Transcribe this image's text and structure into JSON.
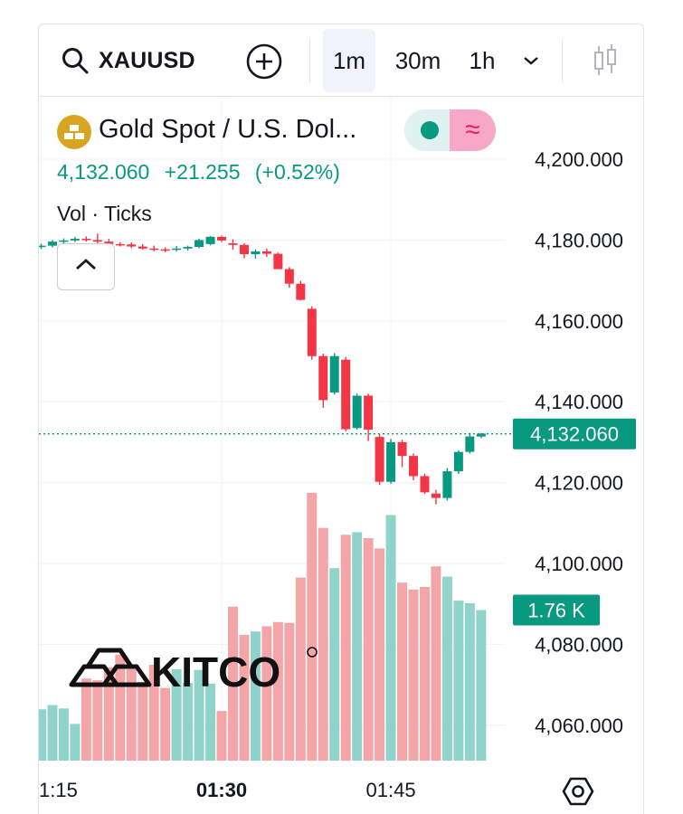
{
  "toolbar": {
    "symbol": "XAUUSD",
    "intervals": [
      "1m",
      "30m",
      "1h"
    ],
    "active_interval": "1m"
  },
  "legend": {
    "title": "Gold Spot / U.S. Dol...",
    "last": "4,132.060",
    "change": "+21.255",
    "change_pct": "(+0.52%)",
    "volume_label": "Vol · Ticks"
  },
  "colors": {
    "up": "#089981",
    "down": "#f23645",
    "up_volume": "#8fd3cb",
    "down_volume": "#f4a5a8",
    "price_badge": "#089981",
    "gold": "#d9a520"
  },
  "price_badge": "4,132.060",
  "volume_badge": "1.76 K",
  "logo": "KITCO",
  "chart_data": {
    "type": "candlestick",
    "y_ticks": [
      "4,200.000",
      "4,180.000",
      "4,160.000",
      "4,140.000",
      "4,120.000",
      "4,100.000",
      "4,080.000",
      "4,060.000"
    ],
    "y_tick_values": [
      4200,
      4180,
      4160,
      4140,
      4120,
      4100,
      4080,
      4060
    ],
    "ylim": [
      4053,
      4207
    ],
    "x_ticks": [
      "1:15",
      "01:30",
      "01:45"
    ],
    "x_tick_index": [
      0,
      16,
      31
    ],
    "last_price": 4132.06,
    "candles": [
      [
        4178.4,
        4179.1,
        4177.8,
        4178.6
      ],
      [
        4178.6,
        4180.0,
        4178.2,
        4179.6
      ],
      [
        4179.6,
        4180.4,
        4179.0,
        4179.9
      ],
      [
        4179.9,
        4180.8,
        4179.5,
        4180.3
      ],
      [
        4180.3,
        4180.9,
        4179.6,
        4180.0
      ],
      [
        4180.0,
        4181.6,
        4179.2,
        4179.6
      ],
      [
        4179.6,
        4180.3,
        4178.7,
        4179.0
      ],
      [
        4179.0,
        4179.5,
        4178.4,
        4178.9
      ],
      [
        4178.9,
        4179.4,
        4178.0,
        4178.4
      ],
      [
        4178.4,
        4179.0,
        4177.6,
        4177.9
      ],
      [
        4177.9,
        4178.6,
        4177.2,
        4177.7
      ],
      [
        4177.7,
        4178.2,
        4177.0,
        4177.6
      ],
      [
        4177.6,
        4178.5,
        4177.2,
        4177.9
      ],
      [
        4177.9,
        4178.6,
        4177.4,
        4178.3
      ],
      [
        4178.3,
        4180.3,
        4178.0,
        4180.0
      ],
      [
        4179.0,
        4181.0,
        4178.7,
        4180.8
      ],
      [
        4180.8,
        4181.1,
        4179.5,
        4179.9
      ],
      [
        4179.2,
        4180.2,
        4177.6,
        4178.8
      ],
      [
        4178.8,
        4179.2,
        4175.5,
        4176.5
      ],
      [
        4176.5,
        4177.7,
        4175.4,
        4177.2
      ],
      [
        4177.2,
        4177.9,
        4175.8,
        4176.6
      ],
      [
        4176.6,
        4176.9,
        4172.8,
        4172.8
      ],
      [
        4172.8,
        4173.3,
        4168.2,
        4169.2
      ],
      [
        4169.2,
        4169.9,
        4165.1,
        4165.2
      ],
      [
        4163.0,
        4163.6,
        4150.4,
        4151.3
      ],
      [
        4151.3,
        4151.9,
        4138.5,
        4140.4
      ],
      [
        4142.3,
        4152.0,
        4141.8,
        4151.3
      ],
      [
        4150.4,
        4151.1,
        4132.7,
        4133.2
      ],
      [
        4133.5,
        4142.0,
        4133.1,
        4141.5
      ],
      [
        4141.5,
        4142.0,
        4130.3,
        4133.1
      ],
      [
        4131.3,
        4132.0,
        4119.4,
        4120.2
      ],
      [
        4120.2,
        4130.8,
        4119.7,
        4130.0
      ],
      [
        4130.0,
        4130.6,
        4123.8,
        4126.6
      ],
      [
        4126.6,
        4127.2,
        4120.6,
        4121.6
      ],
      [
        4121.6,
        4122.2,
        4117.2,
        4117.6
      ],
      [
        4117.3,
        4118.2,
        4114.6,
        4116.2
      ],
      [
        4116.2,
        4123.6,
        4115.6,
        4122.8
      ],
      [
        4122.8,
        4128.0,
        4122.1,
        4127.6
      ],
      [
        4127.6,
        4132.3,
        4127.2,
        4131.4
      ],
      [
        4131.4,
        4132.3,
        4131.0,
        4132.1
      ]
    ],
    "volume_scale_max": 6,
    "volumes": [
      0.6,
      0.65,
      0.61,
      0.43,
      0.96,
      0.94,
      1.09,
      1.24,
      1.07,
      0.92,
      1.12,
      0.85,
      1.07,
      0.91,
      1.06,
      0.9,
      0.58,
      1.8,
      1.47,
      1.51,
      1.57,
      1.62,
      1.61,
      2.14,
      3.13,
      2.72,
      2.25,
      2.64,
      2.67,
      2.6,
      2.48,
      2.87,
      2.08,
      2.0,
      2.03,
      2.27,
      2.15,
      1.87,
      1.84,
      1.76
    ]
  }
}
